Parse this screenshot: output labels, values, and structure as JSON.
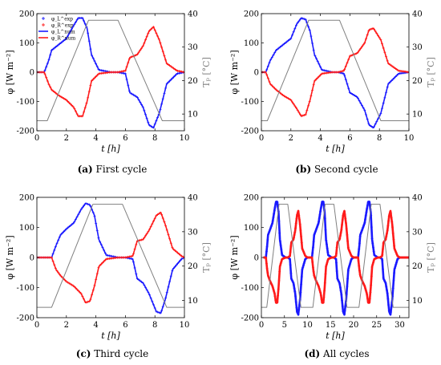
{
  "panels": [
    {
      "caption_tag": "(a)",
      "caption_text": "First cycle"
    },
    {
      "caption_tag": "(b)",
      "caption_text": "Second cycle"
    },
    {
      "caption_tag": "(c)",
      "caption_text": "Third cycle"
    },
    {
      "caption_tag": "(d)",
      "caption_text": "All cycles"
    }
  ],
  "colors": {
    "L": "#1a1aff",
    "R": "#ff1a1a",
    "T": "#808080"
  },
  "chart_data": [
    {
      "type": "line",
      "xlabel": "t [h]",
      "ylabel": "φ [W m⁻²]",
      "y2label": "Tₚ [°C]",
      "xlim": [
        0,
        10
      ],
      "ylim": [
        -200,
        200
      ],
      "y2lim": [
        5,
        40
      ],
      "xticks": [
        0,
        2,
        4,
        6,
        8,
        10
      ],
      "yticks": [
        -200,
        -100,
        0,
        100,
        200
      ],
      "y2ticks": [
        10,
        20,
        30,
        40
      ],
      "legend": [
        "φ_L^exp",
        "φ_R^exp",
        "φ_L^num",
        "φ_R^num"
      ],
      "legend_position": "top-left",
      "series": [
        {
          "name": "φ_L (exp / num)",
          "color": "#1a1aff",
          "x": [
            0,
            0.5,
            0.8,
            1,
            1.5,
            2,
            2.5,
            2.8,
            3.1,
            3.4,
            3.7,
            4.2,
            5,
            5.5,
            6,
            6.3,
            6.8,
            7.2,
            7.6,
            7.9,
            8.3,
            8.8,
            9.5,
            10
          ],
          "y": [
            0,
            0,
            40,
            75,
            95,
            115,
            160,
            185,
            185,
            150,
            60,
            8,
            0,
            0,
            -5,
            -70,
            -85,
            -120,
            -180,
            -190,
            -140,
            -40,
            -5,
            0
          ]
        },
        {
          "name": "φ_R (exp / num)",
          "color": "#ff1a1a",
          "x": [
            0,
            0.5,
            0.8,
            1,
            1.5,
            2,
            2.5,
            2.8,
            3.1,
            3.4,
            3.7,
            4.2,
            5,
            5.5,
            6,
            6.3,
            6.8,
            7.2,
            7.6,
            7.9,
            8.3,
            8.8,
            9.5,
            10
          ],
          "y": [
            0,
            0,
            -40,
            -60,
            -80,
            -95,
            -120,
            -150,
            -150,
            -100,
            -30,
            -5,
            0,
            0,
            5,
            50,
            60,
            90,
            140,
            155,
            110,
            30,
            5,
            0
          ]
        },
        {
          "name": "T_p",
          "color": "#808080",
          "axis": "right",
          "x": [
            0,
            0.7,
            3.5,
            5.5,
            8.5,
            10
          ],
          "y": [
            8,
            8,
            38,
            38,
            8,
            8
          ]
        }
      ]
    },
    {
      "type": "line",
      "xlabel": "t [h]",
      "ylabel": "φ [W m⁻²]",
      "y2label": "Tₚ [°C]",
      "xlim": [
        0,
        10
      ],
      "ylim": [
        -200,
        200
      ],
      "y2lim": [
        5,
        40
      ],
      "xticks": [
        0,
        2,
        4,
        6,
        8,
        10
      ],
      "yticks": [
        -200,
        -100,
        0,
        100,
        200
      ],
      "y2ticks": [
        10,
        20,
        30,
        40
      ],
      "series": [
        {
          "name": "φ_L",
          "color": "#1a1aff",
          "x": [
            0,
            0.3,
            0.6,
            1,
            1.5,
            2,
            2.4,
            2.7,
            3,
            3.3,
            3.6,
            4.1,
            4.8,
            5.2,
            5.6,
            6,
            6.5,
            7,
            7.3,
            7.6,
            8.1,
            8.6,
            9.3,
            10
          ],
          "y": [
            0,
            0,
            40,
            75,
            95,
            115,
            165,
            185,
            180,
            140,
            60,
            8,
            0,
            0,
            -5,
            -70,
            -85,
            -130,
            -180,
            -190,
            -140,
            -40,
            -5,
            0
          ]
        },
        {
          "name": "φ_R",
          "color": "#ff1a1a",
          "x": [
            0,
            0.3,
            0.6,
            1,
            1.5,
            2,
            2.4,
            2.7,
            3,
            3.3,
            3.6,
            4.1,
            4.8,
            5.2,
            5.6,
            6,
            6.5,
            7,
            7.3,
            7.6,
            8.1,
            8.6,
            9.3,
            10
          ],
          "y": [
            0,
            0,
            -40,
            -60,
            -80,
            -95,
            -125,
            -150,
            -145,
            -95,
            -30,
            -5,
            0,
            0,
            5,
            55,
            65,
            100,
            145,
            150,
            110,
            30,
            5,
            0
          ]
        },
        {
          "name": "T_p",
          "color": "#808080",
          "axis": "right",
          "x": [
            0,
            0.4,
            3.2,
            5.3,
            8.1,
            10
          ],
          "y": [
            8,
            8,
            38,
            38,
            8,
            8
          ]
        }
      ]
    },
    {
      "type": "line",
      "xlabel": "t [h]",
      "ylabel": "φ [W m⁻²]",
      "y2label": "Tₚ [°C]",
      "xlim": [
        0,
        10
      ],
      "ylim": [
        -200,
        200
      ],
      "y2lim": [
        5,
        40
      ],
      "xticks": [
        0,
        2,
        4,
        6,
        8,
        10
      ],
      "yticks": [
        -200,
        -100,
        0,
        100,
        200
      ],
      "y2ticks": [
        10,
        20,
        30,
        40
      ],
      "series": [
        {
          "name": "φ_L",
          "color": "#1a1aff",
          "x": [
            0,
            1,
            1.3,
            1.6,
            2,
            2.5,
            3,
            3.3,
            3.6,
            3.9,
            4.2,
            4.7,
            5.5,
            6,
            6.5,
            6.8,
            7.2,
            7.6,
            8.1,
            8.4,
            8.7,
            9.2,
            9.8,
            10
          ],
          "y": [
            0,
            0,
            40,
            75,
            95,
            115,
            160,
            180,
            175,
            140,
            60,
            8,
            0,
            0,
            -5,
            -70,
            -85,
            -120,
            -180,
            -185,
            -140,
            -40,
            -5,
            0
          ]
        },
        {
          "name": "φ_R",
          "color": "#ff1a1a",
          "x": [
            0,
            1,
            1.3,
            1.6,
            2,
            2.5,
            3,
            3.3,
            3.6,
            3.9,
            4.2,
            4.7,
            5.5,
            6,
            6.5,
            6.8,
            7.2,
            7.6,
            8.1,
            8.4,
            8.7,
            9.2,
            9.8,
            10
          ],
          "y": [
            0,
            0,
            -40,
            -60,
            -80,
            -95,
            -120,
            -150,
            -145,
            -95,
            -30,
            -5,
            0,
            0,
            5,
            55,
            60,
            90,
            140,
            150,
            110,
            30,
            5,
            0
          ]
        },
        {
          "name": "T_p",
          "color": "#808080",
          "axis": "right",
          "x": [
            0,
            1,
            3.8,
            5.8,
            8.8,
            10
          ],
          "y": [
            8,
            8,
            38,
            38,
            8,
            8
          ]
        }
      ]
    },
    {
      "type": "line",
      "xlabel": "t [h]",
      "ylabel": "φ [W m⁻²]",
      "y2label": "Tₚ [°C]",
      "xlim": [
        0,
        32
      ],
      "ylim": [
        -200,
        200
      ],
      "y2lim": [
        5,
        40
      ],
      "xticks": [
        0,
        5,
        10,
        15,
        20,
        25,
        30
      ],
      "yticks": [
        -200,
        -100,
        0,
        100,
        200
      ],
      "y2ticks": [
        10,
        20,
        30,
        40
      ],
      "cycles": {
        "starts": [
          0.5,
          10.5,
          20.5
        ],
        "template_ref": "panel a"
      },
      "series": [
        {
          "name": "φ_L",
          "color": "#1a1aff",
          "repeat_of": "panel a φ_L"
        },
        {
          "name": "φ_R",
          "color": "#ff1a1a",
          "repeat_of": "panel a φ_R"
        },
        {
          "name": "T_p",
          "color": "#808080",
          "axis": "right",
          "repeat_of": "panel a T_p"
        }
      ]
    }
  ]
}
